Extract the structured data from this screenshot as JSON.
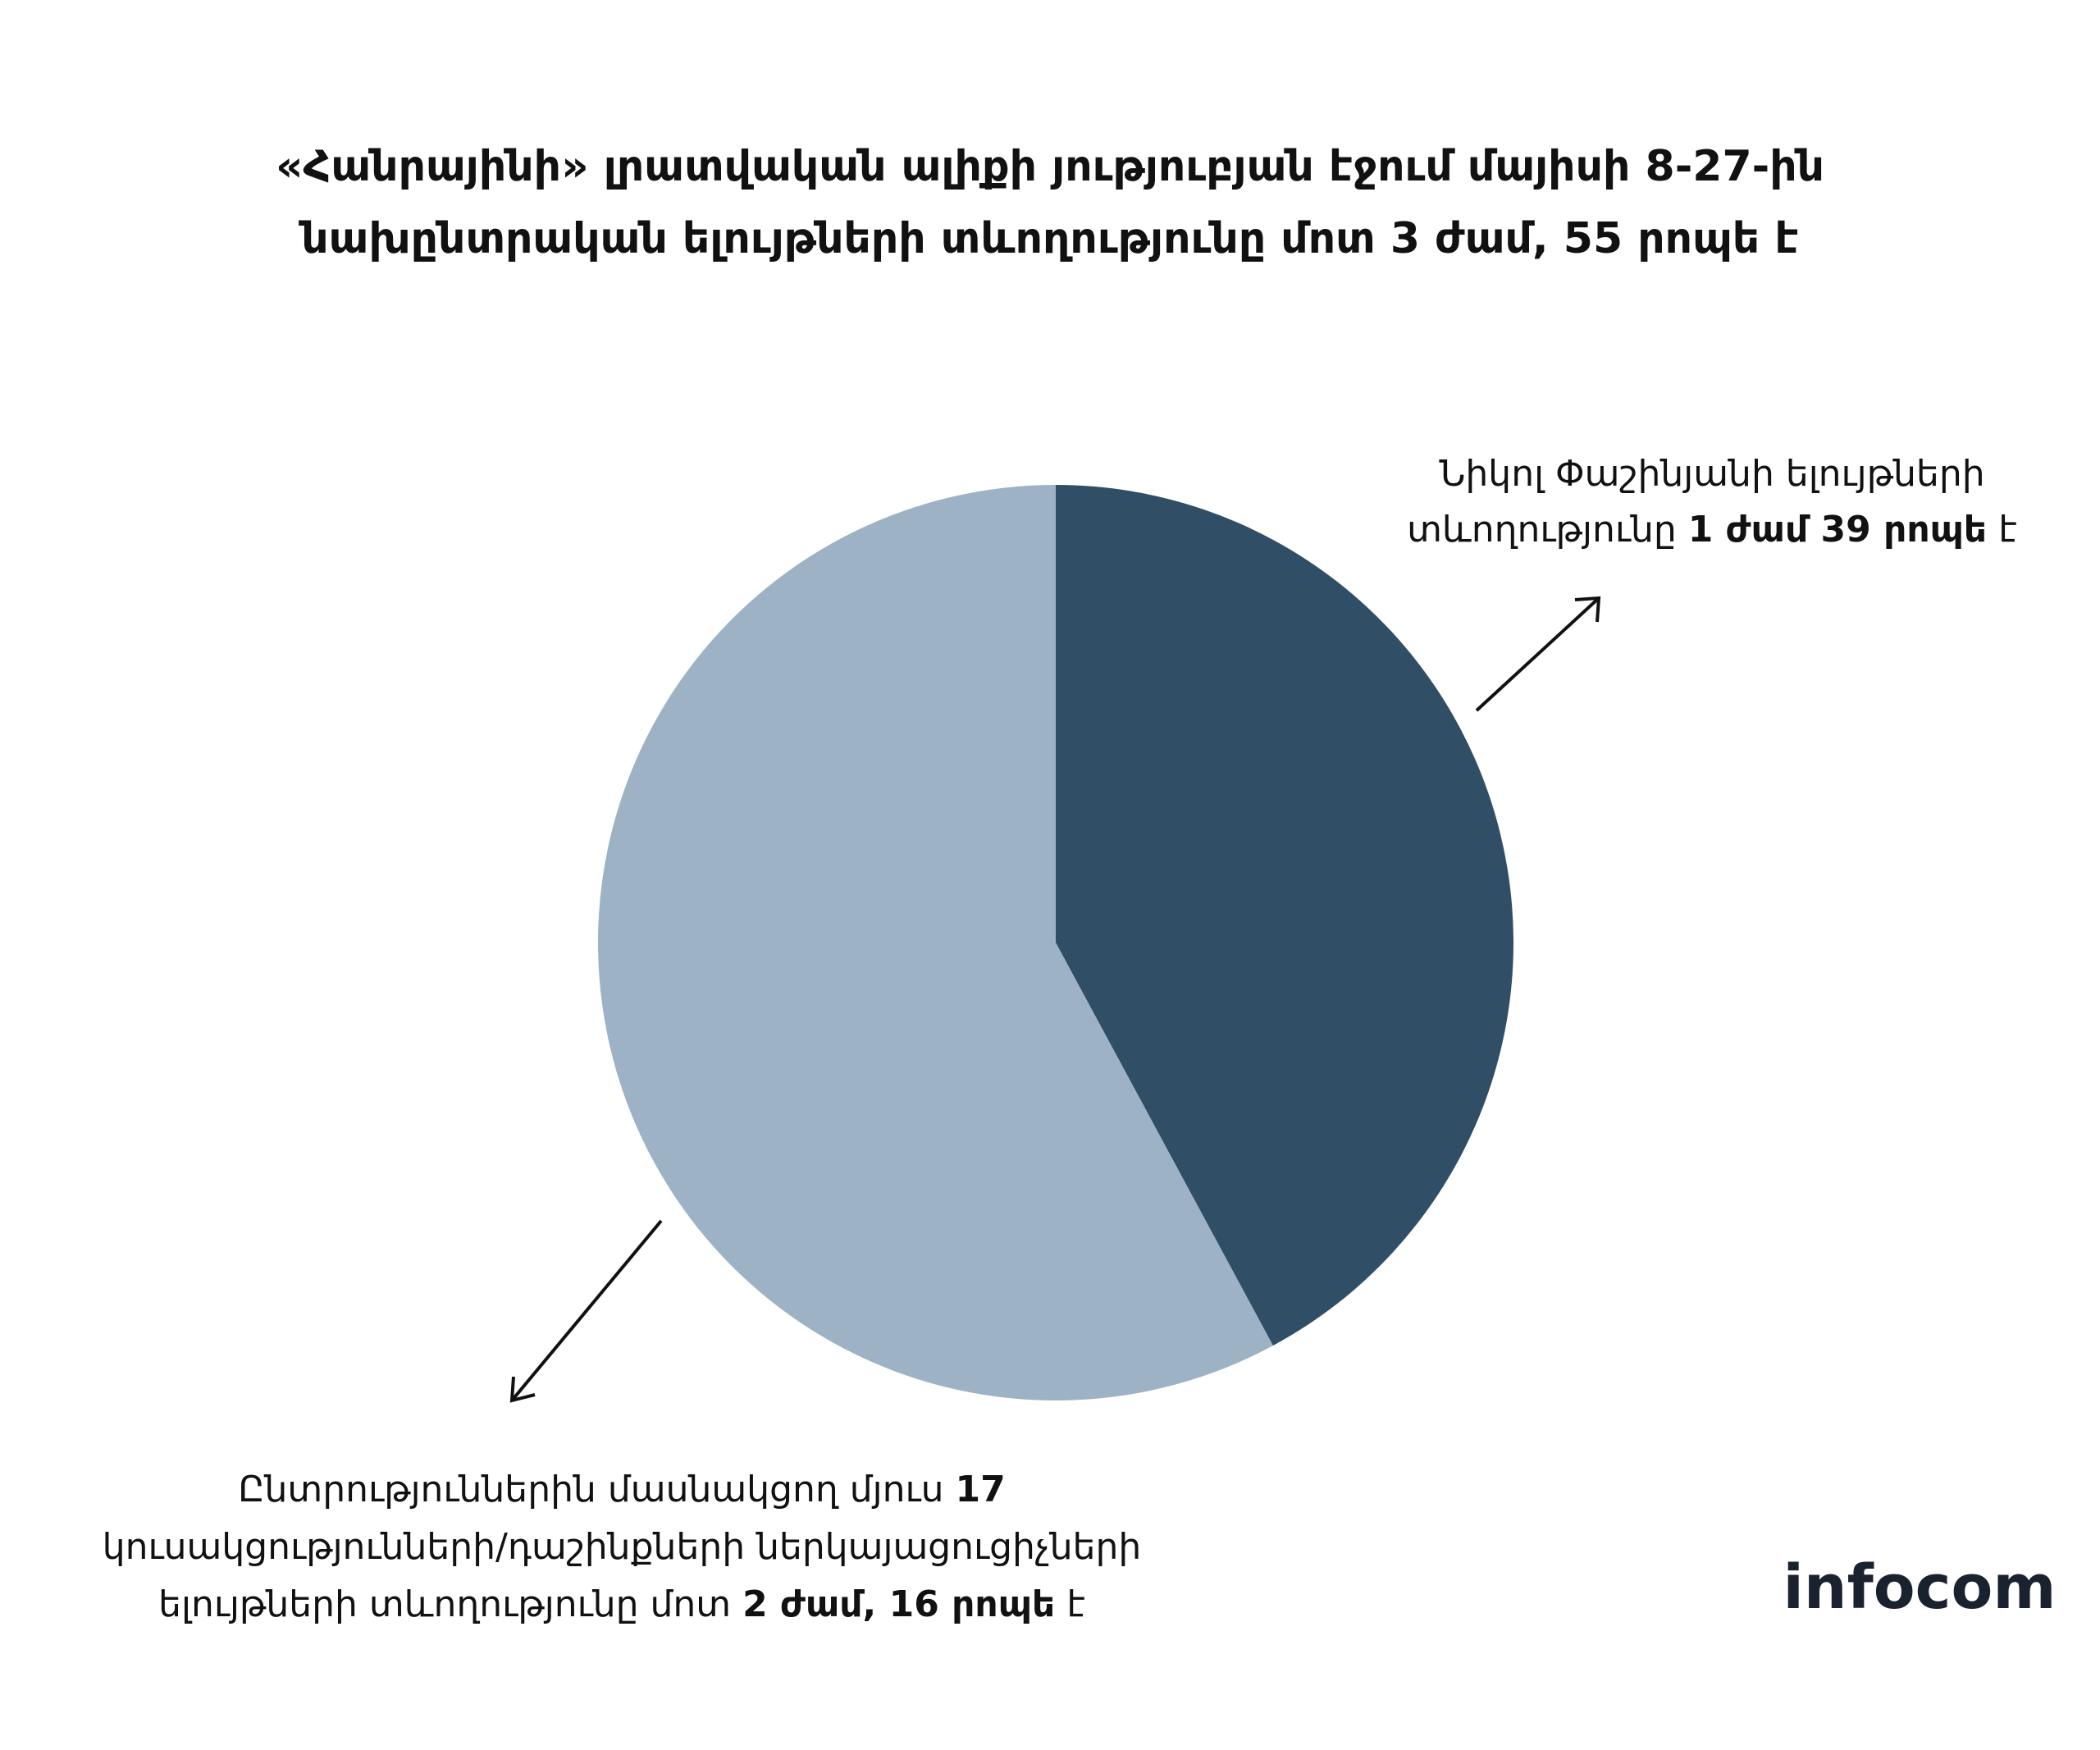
{
  "chart_data": {
    "type": "pie",
    "title": [
      "«Հանրայինի» լրատվական ալիքի յություբյան էջում մայիսի 8-27-ին",
      "նախընտրական ելույթների տևողությունը մոտ 3 ժամ, 55 րոպե է"
    ],
    "values": [
      99,
      136
    ],
    "value_labels": [
      "1 ժամ 39 րոպե",
      "2 ժամ, 16 րոպե"
    ],
    "colors": [
      "#304f66",
      "#9db3c5"
    ],
    "annotations": [
      [
        "Նիկոլ Փաշինյանի ելույթների",
        "տևողությունը",
        "է"
      ],
      [
        "Ընտրություններին մասնակցող մյուս",
        "17",
        "կուսակցությունների/դաշինքների ներկայացուցիչների",
        "ելույթների տևողությունը մոտ",
        "է"
      ]
    ]
  },
  "logo": "infocom"
}
